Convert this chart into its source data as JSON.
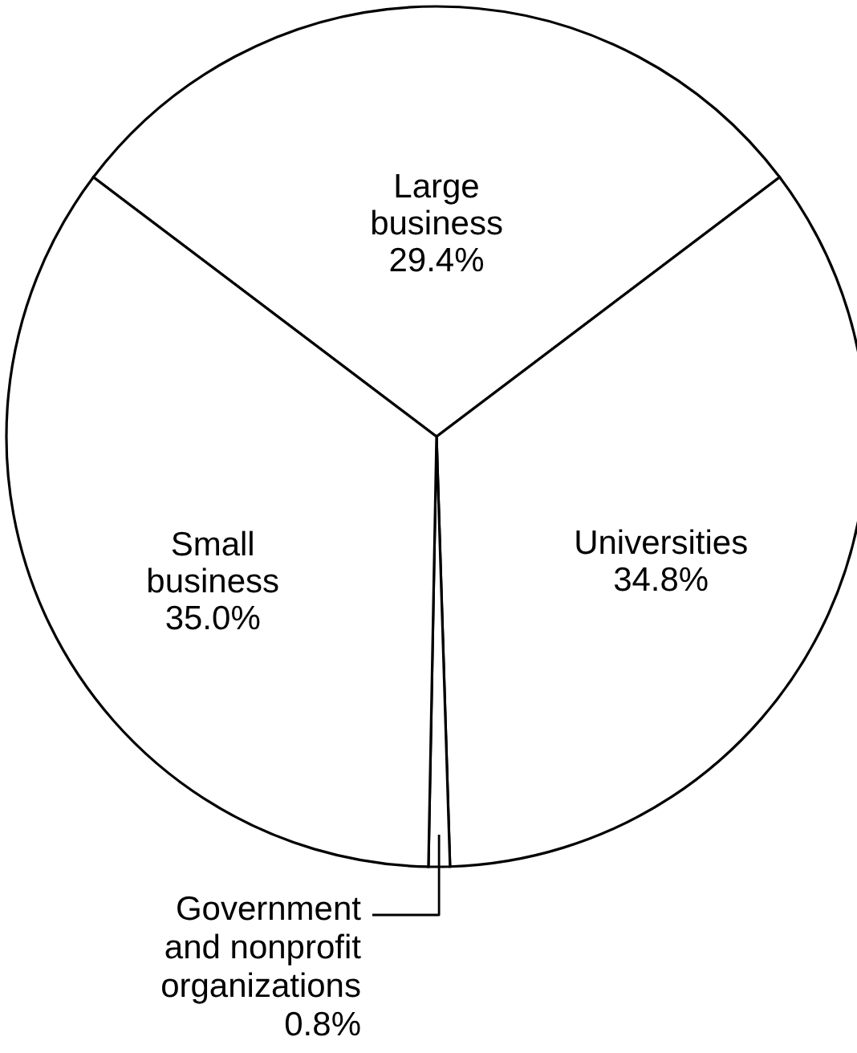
{
  "chart_data": {
    "type": "pie",
    "categories": [
      "Large business",
      "Universities",
      "Government and nonprofit organizations",
      "Small business"
    ],
    "values": [
      29.4,
      34.8,
      0.8,
      35.0
    ],
    "colors": [
      "#ffffff",
      "#ffffff",
      "#ffffff",
      "#ffffff"
    ],
    "value_labels": [
      "29.4%",
      "34.8%",
      "0.8%",
      "35.0%"
    ]
  }
}
